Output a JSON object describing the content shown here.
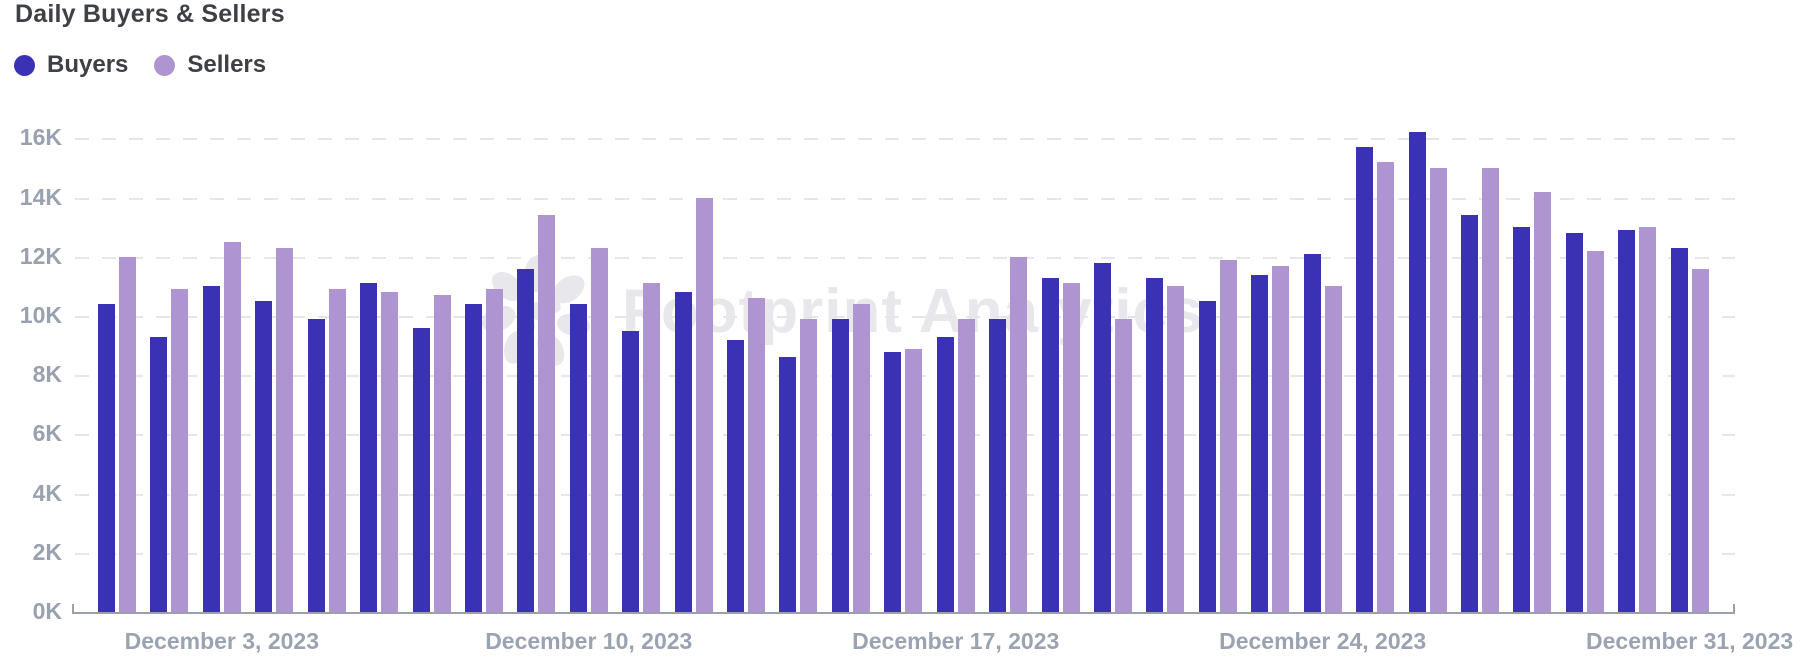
{
  "header": {
    "title": "Daily Buyers & Sellers"
  },
  "legend": {
    "items": [
      {
        "label": "Buyers",
        "color": "#3a31b5"
      },
      {
        "label": "Sellers",
        "color": "#ae94d0"
      }
    ]
  },
  "watermark": {
    "text": "Footprint Analytics"
  },
  "colors": {
    "buyers": "#3a31b5",
    "sellers": "#ae94d0",
    "gridline": "#e5e5ea",
    "axis": "#9ba0ab",
    "axis_label": "#99a0ae",
    "title_text": "#3e4046",
    "watermark": "#e8e8ec",
    "background": "#ffffff"
  },
  "chart_data": {
    "type": "bar",
    "title": "Daily Buyers & Sellers",
    "unit": "thousands (K)",
    "grid": "horizontal-dashed",
    "legend_position": "top-left",
    "ylim_k": [
      0,
      16
    ],
    "y_ticks": [
      "0K",
      "2K",
      "4K",
      "6K",
      "8K",
      "10K",
      "12K",
      "14K",
      "16K"
    ],
    "x_tick_labels": [
      "December 3, 2023",
      "December 10, 2023",
      "December 17, 2023",
      "December 24, 2023",
      "December 31, 2023"
    ],
    "x_ticks": [
      {
        "label": "December 3, 2023",
        "day": 3
      },
      {
        "label": "December 10, 2023",
        "day": 10
      },
      {
        "label": "December 17, 2023",
        "day": 17
      },
      {
        "label": "December 24, 2023",
        "day": 24
      },
      {
        "label": "December 31, 2023",
        "day": 31
      }
    ],
    "categories": [
      "Dec 1, 2023",
      "Dec 2, 2023",
      "Dec 3, 2023",
      "Dec 4, 2023",
      "Dec 5, 2023",
      "Dec 6, 2023",
      "Dec 7, 2023",
      "Dec 8, 2023",
      "Dec 9, 2023",
      "Dec 10, 2023",
      "Dec 11, 2023",
      "Dec 12, 2023",
      "Dec 13, 2023",
      "Dec 14, 2023",
      "Dec 15, 2023",
      "Dec 16, 2023",
      "Dec 17, 2023",
      "Dec 18, 2023",
      "Dec 19, 2023",
      "Dec 20, 2023",
      "Dec 21, 2023",
      "Dec 22, 2023",
      "Dec 23, 2023",
      "Dec 24, 2023",
      "Dec 25, 2023",
      "Dec 26, 2023",
      "Dec 27, 2023",
      "Dec 28, 2023",
      "Dec 29, 2023",
      "Dec 30, 2023",
      "Dec 31, 2023"
    ],
    "series": [
      {
        "name": "Buyers",
        "color": "#3a31b5",
        "values_k": [
          10.4,
          9.3,
          11.0,
          10.5,
          9.9,
          11.1,
          9.6,
          10.4,
          11.6,
          10.4,
          9.5,
          10.8,
          9.2,
          8.6,
          9.9,
          8.8,
          9.3,
          9.9,
          11.3,
          11.8,
          11.3,
          10.5,
          11.4,
          12.1,
          15.7,
          16.2,
          13.4,
          13.0,
          12.8,
          12.9,
          12.3
        ]
      },
      {
        "name": "Sellers",
        "color": "#ae94d0",
        "values_k": [
          12.0,
          10.9,
          12.5,
          12.3,
          10.9,
          10.8,
          10.7,
          10.9,
          13.4,
          12.3,
          11.1,
          14.0,
          10.6,
          9.9,
          10.4,
          8.9,
          9.9,
          12.0,
          11.1,
          9.9,
          11.0,
          11.9,
          11.7,
          11.0,
          15.2,
          15.0,
          15.0,
          14.2,
          12.2,
          13.0,
          11.6
        ]
      }
    ]
  }
}
